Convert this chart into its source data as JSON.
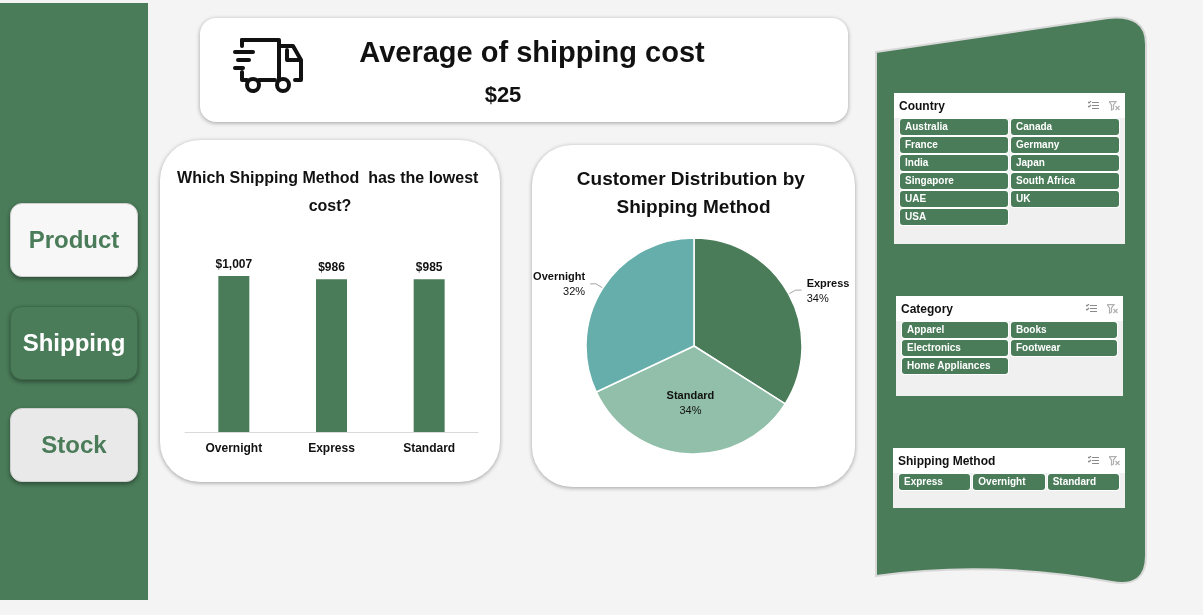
{
  "chart_data": [
    {
      "type": "other",
      "annotations": [
        "Product",
        "Shipping",
        "Stock"
      ]
    },
    {
      "type": "other",
      "title": "Average of shipping cost",
      "annotations": [
        "$25"
      ]
    },
    {
      "type": "bar",
      "title": "Which Shipping Method  has the lowest cost?",
      "categories": [
        "Overnight",
        "Express",
        "Standard"
      ],
      "values": [
        1007,
        986,
        985
      ],
      "value_labels": [
        "$1,007",
        "$986",
        "$985"
      ],
      "color": "#4a7c59",
      "tick_labels": "x"
    },
    {
      "type": "pie",
      "title": "Customer Distribution by Shipping Method",
      "categories": [
        "Express",
        "Standard",
        "Overnight"
      ],
      "values": [
        34,
        34,
        32
      ],
      "value_labels": [
        "34%",
        "34%",
        "32%"
      ],
      "colors": [
        "#4a7c59",
        "#91bfa9",
        "#66aeab"
      ]
    },
    {
      "type": "other",
      "title": "Country",
      "annotations": [
        "Australia",
        "Canada",
        "France",
        "Germany",
        "India",
        "Japan",
        "Singapore",
        "South Africa",
        "UAE",
        "UK",
        "USA"
      ]
    },
    {
      "type": "other",
      "title": "Category",
      "annotations": [
        "Apparel",
        "Books",
        "Electronics",
        "Footwear",
        "Home Appliances"
      ]
    },
    {
      "type": "other",
      "title": "Shipping Method",
      "annotations": [
        "Express",
        "Overnight",
        "Standard"
      ]
    }
  ]
}
